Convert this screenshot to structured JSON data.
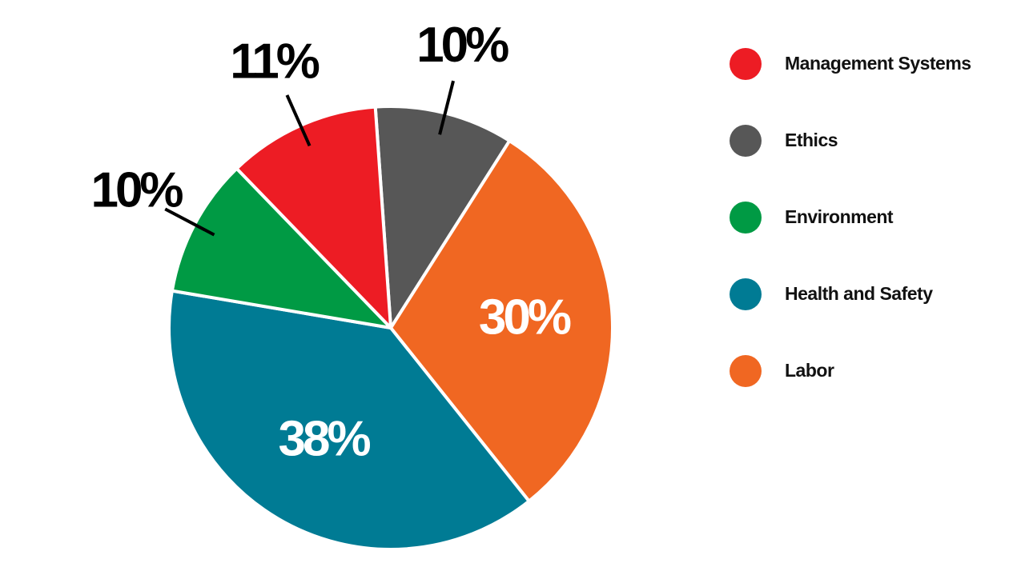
{
  "chart_data": {
    "type": "pie",
    "categories": [
      "Management Systems",
      "Ethics",
      "Environment",
      "Health and Safety",
      "Labor"
    ],
    "values": [
      11,
      10,
      10,
      38,
      30
    ],
    "value_labels": [
      "11%",
      "10%",
      "10%",
      "38%",
      "30%"
    ],
    "colors": [
      "#ed1c24",
      "#575757",
      "#009a44",
      "#007b94",
      "#f06722"
    ]
  }
}
